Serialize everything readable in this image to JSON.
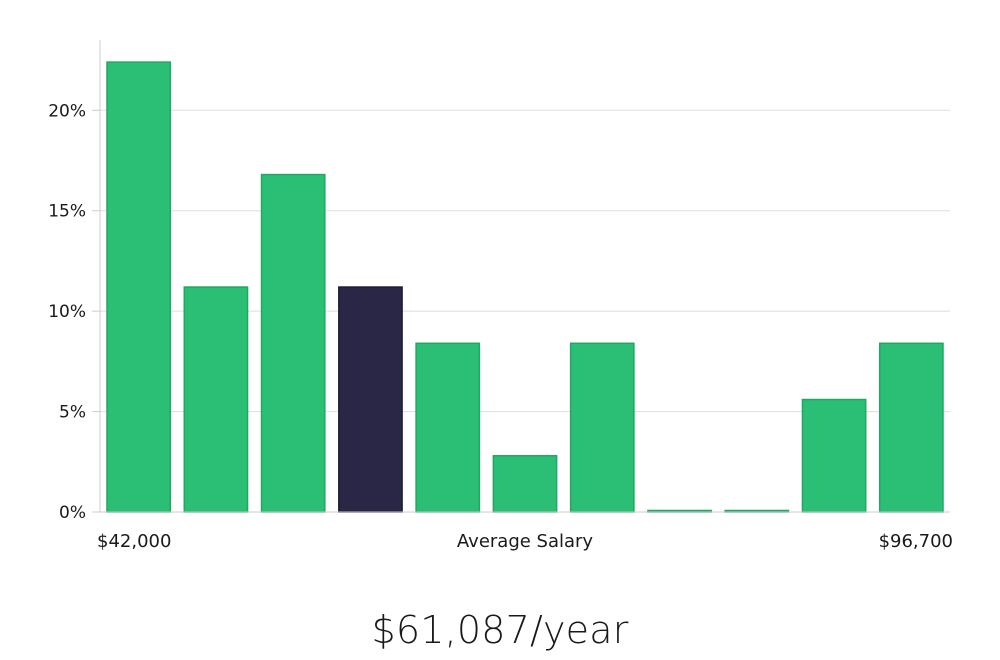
{
  "chart_data": {
    "type": "bar",
    "categories": [
      "$42,000",
      "",
      "",
      "",
      "",
      "",
      "",
      "",
      "",
      "",
      "$96,700"
    ],
    "values": [
      22.4,
      11.2,
      16.8,
      11.2,
      8.4,
      2.8,
      8.4,
      0,
      0,
      5.6,
      8.4
    ],
    "highlight_index": 3,
    "xlabel": "Average Salary",
    "x_min_label": "$42,000",
    "x_max_label": "$96,700",
    "ylim": [
      0,
      23.5
    ],
    "yticks": [
      0,
      5,
      10,
      15,
      20
    ],
    "ytick_labels": [
      "0%",
      "5%",
      "10%",
      "15%",
      "20%"
    ],
    "grid": true,
    "colors": {
      "bar": "#2bbf76",
      "bar_border": "#1fa863",
      "highlight": "#2a2746",
      "grid": "#dddddd",
      "axis": "#cccccc",
      "text": "#1a1a1a"
    }
  },
  "summary": {
    "salary_label": "$61,087/year"
  }
}
